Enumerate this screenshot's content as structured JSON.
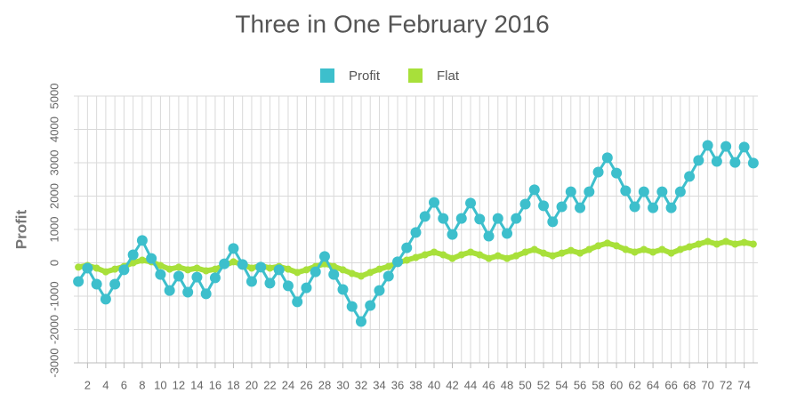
{
  "chart_data": {
    "type": "line",
    "title": "Three in One February 2016",
    "y_label": "Profit",
    "x": [
      1,
      2,
      3,
      4,
      5,
      6,
      7,
      8,
      9,
      10,
      11,
      12,
      13,
      14,
      15,
      16,
      17,
      18,
      19,
      20,
      21,
      22,
      23,
      24,
      25,
      26,
      27,
      28,
      29,
      30,
      31,
      32,
      33,
      34,
      35,
      36,
      37,
      38,
      39,
      40,
      41,
      42,
      43,
      44,
      45,
      46,
      47,
      48,
      49,
      50,
      51,
      52,
      53,
      54,
      55,
      56,
      57,
      58,
      59,
      60,
      61,
      62,
      63,
      64,
      65,
      66,
      67,
      68,
      69,
      70,
      71,
      72,
      73,
      74,
      75
    ],
    "xlim": [
      0.5,
      75.5
    ],
    "xticks": [
      2,
      4,
      6,
      8,
      10,
      12,
      14,
      16,
      18,
      20,
      22,
      24,
      26,
      28,
      30,
      32,
      34,
      36,
      38,
      40,
      42,
      44,
      46,
      48,
      50,
      52,
      54,
      56,
      58,
      60,
      62,
      64,
      66,
      68,
      70,
      72,
      74
    ],
    "ylim": [
      -3000,
      5000
    ],
    "yticks": [
      -3000,
      -2000,
      -1000,
      0,
      1000,
      2000,
      3000,
      4000,
      5000
    ],
    "grid": true,
    "legend": "top",
    "series": [
      {
        "name": "Profit",
        "color": "#3dbfcc",
        "values": [
          -560,
          -160,
          -640,
          -1090,
          -640,
          -210,
          240,
          670,
          130,
          -350,
          -830,
          -400,
          -880,
          -430,
          -930,
          -450,
          -30,
          430,
          -50,
          -560,
          -130,
          -610,
          -210,
          -690,
          -1170,
          -750,
          -270,
          190,
          -350,
          -800,
          -1310,
          -1760,
          -1280,
          -830,
          -400,
          30,
          450,
          910,
          1390,
          1810,
          1330,
          850,
          1330,
          1790,
          1310,
          800,
          1330,
          880,
          1330,
          1760,
          2190,
          1710,
          1230,
          1680,
          2130,
          1650,
          2130,
          2720,
          3150,
          2690,
          2160,
          1680,
          2130,
          1650,
          2130,
          1650,
          2130,
          2590,
          3070,
          3520,
          3040,
          3490,
          3010,
          3470,
          2990
        ]
      },
      {
        "name": "Flat",
        "color": "#a8e03a",
        "values": [
          -130,
          -80,
          -160,
          -270,
          -190,
          -110,
          0,
          80,
          30,
          -80,
          -190,
          -130,
          -210,
          -160,
          -240,
          -190,
          -80,
          30,
          -50,
          -160,
          -80,
          -160,
          -110,
          -190,
          -290,
          -210,
          -110,
          -30,
          -110,
          -210,
          -320,
          -400,
          -290,
          -190,
          -110,
          0,
          80,
          160,
          240,
          320,
          240,
          130,
          240,
          320,
          240,
          130,
          210,
          130,
          210,
          320,
          400,
          290,
          210,
          290,
          370,
          290,
          400,
          510,
          590,
          510,
          400,
          320,
          400,
          320,
          400,
          290,
          400,
          480,
          560,
          640,
          560,
          640,
          560,
          610,
          560
        ]
      }
    ]
  }
}
